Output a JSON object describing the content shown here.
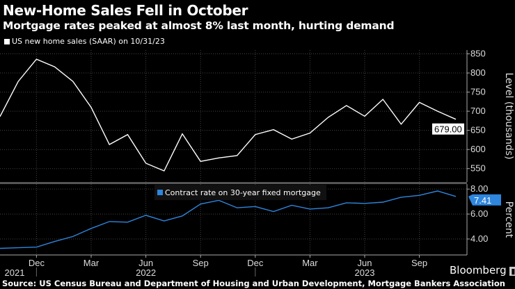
{
  "header": {
    "title": "New-Home Sales Fell in October",
    "subtitle": "Mortgage rates peaked at almost 8% last month, hurting demand"
  },
  "footer": {
    "source": "Source: US Census Bureau and Department of Housing and Urban Development, Mortgage Bankers Association",
    "logo": "Bloomberg"
  },
  "chart_data": [
    {
      "type": "line",
      "series": [
        {
          "name": "US new home sales (SAAR) on 10/31/23",
          "color": "#ffffff",
          "x": [
            "2021-09",
            "2021-10",
            "2021-11",
            "2021-12",
            "2022-01",
            "2022-02",
            "2022-03",
            "2022-04",
            "2022-05",
            "2022-06",
            "2022-07",
            "2022-08",
            "2022-09",
            "2022-10",
            "2022-11",
            "2022-12",
            "2023-01",
            "2023-02",
            "2023-03",
            "2023-04",
            "2023-05",
            "2023-06",
            "2023-07",
            "2023-08",
            "2023-09",
            "2023-10"
          ],
          "values": [
            686,
            778,
            836,
            816,
            778,
            710,
            613,
            639,
            564,
            544,
            641,
            569,
            578,
            584,
            639,
            652,
            627,
            643,
            684,
            715,
            687,
            731,
            666,
            723,
            700,
            679
          ]
        }
      ],
      "last_value_label": "679.00",
      "ylabel": "Level (thousands)",
      "yticks": [
        "850",
        "800",
        "750",
        "700",
        "650",
        "600",
        "550"
      ],
      "ylim": [
        515,
        860
      ],
      "grid": true
    },
    {
      "type": "line",
      "series": [
        {
          "name": "Contract rate on 30-year fixed mortgage",
          "color": "#2e86de",
          "x": [
            "2021-09",
            "2021-10",
            "2021-11",
            "2021-12",
            "2022-01",
            "2022-02",
            "2022-03",
            "2022-04",
            "2022-05",
            "2022-06",
            "2022-07",
            "2022-08",
            "2022-09",
            "2022-10",
            "2022-11",
            "2022-12",
            "2023-01",
            "2023-02",
            "2023-03",
            "2023-04",
            "2023-05",
            "2023-06",
            "2023-07",
            "2023-08",
            "2023-09",
            "2023-10"
          ],
          "values": [
            3.25,
            3.3,
            3.35,
            3.8,
            4.2,
            4.85,
            5.4,
            5.35,
            5.9,
            5.45,
            5.85,
            6.8,
            7.1,
            6.5,
            6.6,
            6.2,
            6.7,
            6.4,
            6.5,
            6.9,
            6.85,
            6.95,
            7.35,
            7.5,
            7.85,
            7.41
          ]
        }
      ],
      "last_value_label": "7.41",
      "ylabel": "Percent",
      "yticks": [
        "8.00",
        "6.00",
        "4.00"
      ],
      "ylim": [
        2.72,
        8.4
      ],
      "grid": true
    }
  ],
  "xaxis": {
    "month_ticks": [
      "Dec",
      "Mar",
      "Jun",
      "Sep",
      "Dec",
      "Mar",
      "Jun",
      "Sep"
    ],
    "year_labels": [
      "2021",
      "2022",
      "2023"
    ]
  }
}
